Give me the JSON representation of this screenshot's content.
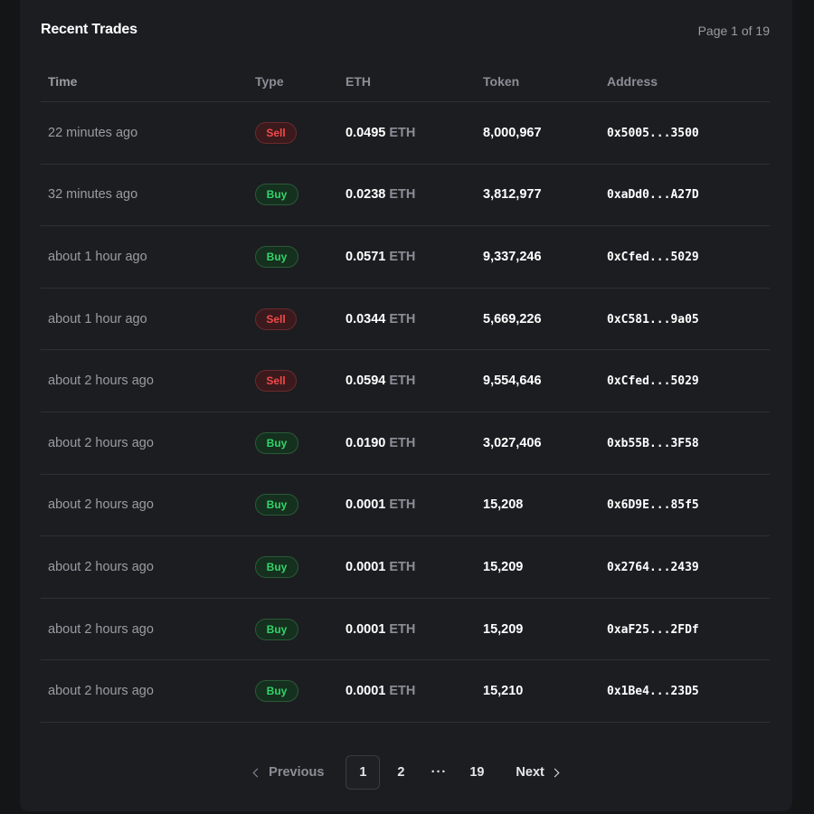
{
  "header": {
    "title": "Recent Trades",
    "page_info": "Page 1 of 19"
  },
  "table": {
    "columns": [
      "Time",
      "Type",
      "ETH",
      "Token",
      "Address"
    ],
    "rows": [
      {
        "time": "22 minutes ago",
        "type": "Sell",
        "eth": "0.0495",
        "unit": "ETH",
        "token": "8,000,967",
        "address": "0x5005...3500"
      },
      {
        "time": "32 minutes ago",
        "type": "Buy",
        "eth": "0.0238",
        "unit": "ETH",
        "token": "3,812,977",
        "address": "0xaDd0...A27D"
      },
      {
        "time": "about 1 hour ago",
        "type": "Buy",
        "eth": "0.0571",
        "unit": "ETH",
        "token": "9,337,246",
        "address": "0xCfed...5029"
      },
      {
        "time": "about 1 hour ago",
        "type": "Sell",
        "eth": "0.0344",
        "unit": "ETH",
        "token": "5,669,226",
        "address": "0xC581...9a05"
      },
      {
        "time": "about 2 hours ago",
        "type": "Sell",
        "eth": "0.0594",
        "unit": "ETH",
        "token": "9,554,646",
        "address": "0xCfed...5029"
      },
      {
        "time": "about 2 hours ago",
        "type": "Buy",
        "eth": "0.0190",
        "unit": "ETH",
        "token": "3,027,406",
        "address": "0xb55B...3F58"
      },
      {
        "time": "about 2 hours ago",
        "type": "Buy",
        "eth": "0.0001",
        "unit": "ETH",
        "token": "15,208",
        "address": "0x6D9E...85f5"
      },
      {
        "time": "about 2 hours ago",
        "type": "Buy",
        "eth": "0.0001",
        "unit": "ETH",
        "token": "15,209",
        "address": "0x2764...2439"
      },
      {
        "time": "about 2 hours ago",
        "type": "Buy",
        "eth": "0.0001",
        "unit": "ETH",
        "token": "15,209",
        "address": "0xaF25...2FDf"
      },
      {
        "time": "about 2 hours ago",
        "type": "Buy",
        "eth": "0.0001",
        "unit": "ETH",
        "token": "15,210",
        "address": "0x1Be4...23D5"
      }
    ]
  },
  "pagination": {
    "previous_label": "Previous",
    "next_label": "Next",
    "pages": [
      "1",
      "2",
      "19"
    ],
    "ellipsis": "···",
    "current": "1"
  },
  "colors": {
    "background": "#1c1d21",
    "sell": "#f24a4a",
    "buy": "#33d46a",
    "muted_text": "#9a9ca3"
  },
  "icons": {
    "previous": "chevron-left-icon",
    "next": "chevron-right-icon"
  }
}
